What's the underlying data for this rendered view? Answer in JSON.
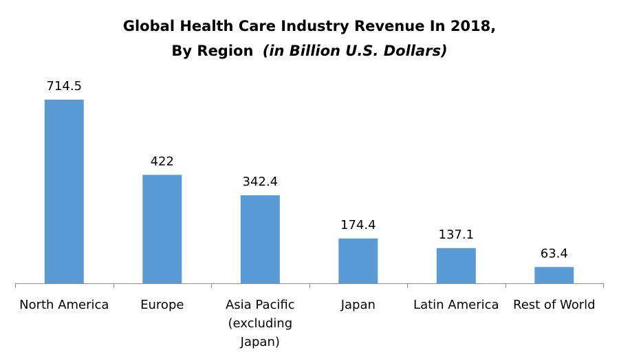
{
  "chart_data": {
    "type": "bar",
    "title": "Global Health Care Industry Revenue In 2018,",
    "subtitle_prefix": "By Region",
    "subtitle_italic": "(in Billion U.S. Dollars)",
    "categories": [
      [
        "North America"
      ],
      [
        "Europe"
      ],
      [
        "Asia Pacific",
        "(excluding",
        "Japan)"
      ],
      [
        "Japan"
      ],
      [
        "Latin America"
      ],
      [
        "Rest of World"
      ]
    ],
    "values": [
      714.5,
      422,
      342.4,
      174.4,
      137.1,
      63.4
    ],
    "data_labels": [
      "714.5",
      "422",
      "342.4",
      "174.4",
      "137.1",
      "63.4"
    ],
    "xlabel": "",
    "ylabel": "",
    "ylim": [
      0,
      800
    ],
    "grid": false,
    "legend": "none",
    "bar_color": "#5B9BD5",
    "axis_color": "#8C8C8C"
  }
}
